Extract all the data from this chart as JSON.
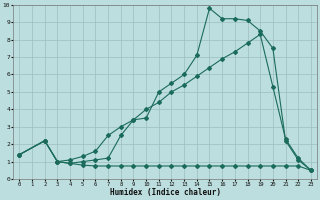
{
  "xlabel": "Humidex (Indice chaleur)",
  "xlim": [
    -0.5,
    23.5
  ],
  "ylim": [
    0,
    10
  ],
  "xticks": [
    0,
    1,
    2,
    3,
    4,
    5,
    6,
    7,
    8,
    9,
    10,
    11,
    12,
    13,
    14,
    15,
    16,
    17,
    18,
    19,
    20,
    21,
    22,
    23
  ],
  "yticks": [
    0,
    1,
    2,
    3,
    4,
    5,
    6,
    7,
    8,
    9,
    10
  ],
  "line_color": "#1a6b5a",
  "bg_color": "#bddede",
  "grid_color": "#9dbebe",
  "line1_x": [
    0,
    2,
    3,
    4,
    5,
    6,
    7,
    8,
    9,
    10,
    11,
    12,
    13,
    14,
    15,
    16,
    17,
    18,
    19,
    20,
    21,
    22,
    23
  ],
  "line1_y": [
    1.4,
    2.2,
    1.0,
    0.9,
    1.0,
    1.1,
    1.2,
    2.5,
    3.4,
    3.5,
    5.0,
    5.5,
    6.0,
    7.1,
    9.8,
    9.2,
    9.2,
    9.1,
    8.5,
    7.5,
    2.2,
    1.1,
    0.5
  ],
  "line2_x": [
    0,
    2,
    3,
    4,
    5,
    6,
    7,
    8,
    9,
    10,
    11,
    12,
    13,
    14,
    15,
    16,
    17,
    18,
    19,
    20,
    21,
    22,
    23
  ],
  "line2_y": [
    1.4,
    2.2,
    1.0,
    1.1,
    1.3,
    1.6,
    2.5,
    3.0,
    3.4,
    4.0,
    4.4,
    5.0,
    5.4,
    5.9,
    6.4,
    6.9,
    7.3,
    7.8,
    8.3,
    5.3,
    2.3,
    1.2,
    0.5
  ],
  "line3_x": [
    0,
    2,
    3,
    4,
    5,
    6,
    7,
    8,
    9,
    10,
    11,
    12,
    13,
    14,
    15,
    16,
    17,
    18,
    19,
    20,
    21,
    22,
    23
  ],
  "line3_y": [
    1.4,
    2.2,
    1.0,
    0.9,
    0.8,
    0.75,
    0.75,
    0.75,
    0.75,
    0.75,
    0.75,
    0.75,
    0.75,
    0.75,
    0.75,
    0.75,
    0.75,
    0.75,
    0.75,
    0.75,
    0.75,
    0.75,
    0.5
  ]
}
